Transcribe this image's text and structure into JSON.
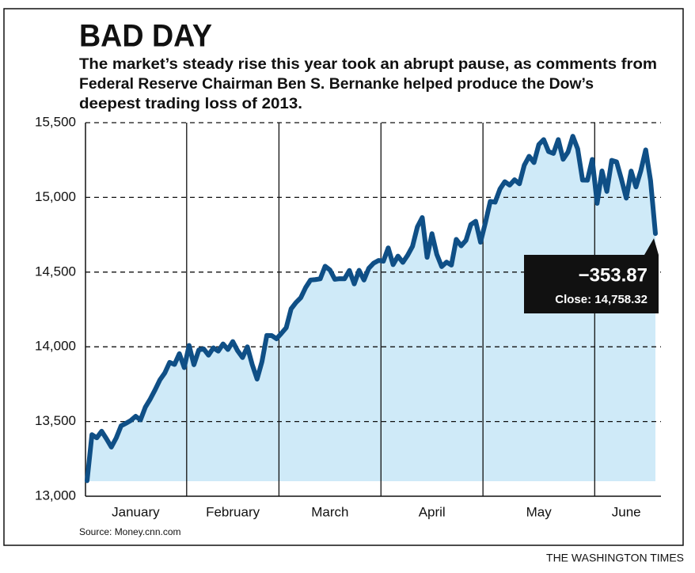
{
  "chart_data": {
    "type": "line",
    "title": "BAD DAY",
    "subtitle": [
      "The market’s steady rise this year took an abrupt pause, as comments from",
      "Federal Reserve Chairman Ben S. Bernanke helped produce the Dow’s",
      "deepest trading loss of 2013."
    ],
    "categories": [
      "January",
      "February",
      "March",
      "April",
      "May",
      "June"
    ],
    "values": [
      [
        13104,
        13412,
        13391,
        13435,
        13384,
        13329,
        13390,
        13471,
        13488,
        13507,
        13535,
        13511,
        13596,
        13650,
        13712,
        13779,
        13825,
        13896,
        13882,
        13954,
        13861
      ],
      [
        14009,
        13880,
        13979,
        13986,
        13944,
        13993,
        13971,
        14019,
        13982,
        14035,
        13973,
        13928,
        14000,
        13881,
        13784,
        13900,
        14076,
        14075,
        14054
      ],
      [
        14090,
        14128,
        14254,
        14296,
        14329,
        14397,
        14447,
        14450,
        14455,
        14539,
        14514,
        14452,
        14456,
        14455,
        14511,
        14421,
        14512,
        14447,
        14526,
        14560,
        14578
      ],
      [
        14573,
        14662,
        14550,
        14607,
        14565,
        14613,
        14673,
        14803,
        14865,
        14599,
        14757,
        14618,
        14537,
        14567,
        14547,
        14719,
        14676,
        14712,
        14818,
        14840,
        14700
      ],
      [
        14831,
        14973,
        14968,
        15056,
        15105,
        15082,
        15118,
        15091,
        15215,
        15275,
        15233,
        15354,
        15387,
        15307,
        15294,
        15387,
        15255,
        15303,
        15409,
        15324,
        15116,
        15115,
        15254
      ],
      [
        14960,
        15177,
        15040,
        15248,
        15238,
        15122,
        14995,
        15176,
        15070,
        15179,
        15318,
        15112,
        14758
      ]
    ],
    "color": "#0f4f86",
    "fill_color": "#cfeaf8",
    "ylim": [
      13000,
      15500
    ],
    "yticks": [
      {
        "value": 13000,
        "label": "13,000"
      },
      {
        "value": 13500,
        "label": "13,500"
      },
      {
        "value": 14000,
        "label": "14,000"
      },
      {
        "value": 14500,
        "label": "14,500"
      },
      {
        "value": 15000,
        "label": "15,000"
      },
      {
        "value": 15500,
        "label": "15,500"
      }
    ],
    "grid": true,
    "annotation": [
      "−353.87",
      "Close: 14,758.32"
    ],
    "source": "Source: Money.cnn.com",
    "credit": "THE WASHINGTON TIMES"
  }
}
